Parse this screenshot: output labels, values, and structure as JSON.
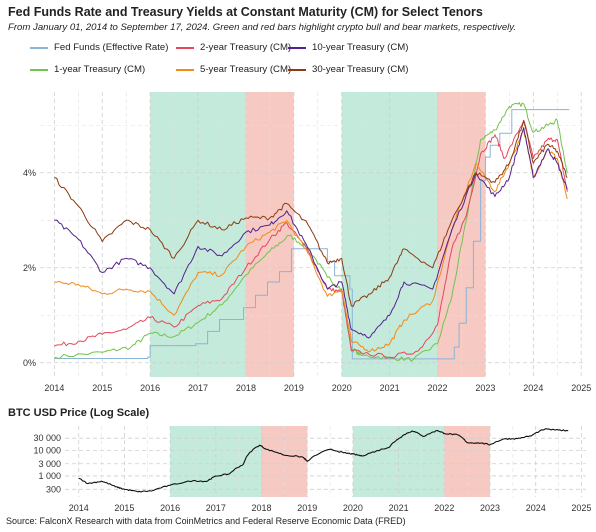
{
  "header": {
    "title": "Fed Funds Rate and Treasury Yields at Constant Maturity (CM) for Select Tenors",
    "subtitle": "From January 01, 2014 to September 17, 2024. Green and red bars highlight crypto bull and bear markets, respectively."
  },
  "legend": [
    {
      "label": "Fed Funds (Effective Rate)",
      "color": "#8ab4d8"
    },
    {
      "label": "2-year Treasury (CM)",
      "color": "#e3495a"
    },
    {
      "label": "10-year Treasury (CM)",
      "color": "#55228d"
    },
    {
      "label": "1-year Treasury (CM)",
      "color": "#74c34c"
    },
    {
      "label": "5-year Treasury (CM)",
      "color": "#f28a1c"
    },
    {
      "label": "30-year Treasury (CM)",
      "color": "#8c3b14"
    }
  ],
  "btc_title": "BTC USD Price (Log Scale)",
  "source": "Source: FalconX Research with data from CoinMetrics and Federal Reserve Economic Data (FRED)",
  "chart_data": [
    {
      "type": "line",
      "x_range": [
        2013.7,
        2025.1
      ],
      "ylim": [
        -0.3,
        5.7
      ],
      "y_ticks": [
        0,
        2,
        4
      ],
      "y_tick_labels": [
        "0%",
        "2%",
        "4%"
      ],
      "x_ticks": [
        2014,
        2015,
        2016,
        2017,
        2018,
        2019,
        2020,
        2021,
        2022,
        2023,
        2024,
        2025
      ],
      "x_tick_labels": [
        "2014",
        "2015",
        "2016",
        "2017",
        "2018",
        "2019",
        "2020",
        "2021",
        "2022",
        "2023",
        "2024",
        "2025"
      ],
      "bands": [
        {
          "type": "bull",
          "start": 2016.0,
          "end": 2018.0,
          "color": "#c3eadb"
        },
        {
          "type": "bear",
          "start": 2018.0,
          "end": 2019.0,
          "color": "#f6c9c3"
        },
        {
          "type": "bull",
          "start": 2020.0,
          "end": 2022.0,
          "color": "#c3eadb"
        },
        {
          "type": "bear",
          "start": 2022.0,
          "end": 2023.0,
          "color": "#f6c9c3"
        }
      ],
      "series": [
        {
          "name": "Fed Funds (Effective Rate)",
          "color": "#8ab4d8",
          "x": [
            2014.0,
            2015.95,
            2016.0,
            2016.95,
            2017.2,
            2017.45,
            2017.95,
            2018.2,
            2018.45,
            2018.7,
            2018.95,
            2019.55,
            2019.7,
            2019.85,
            2020.17,
            2020.22,
            2022.2,
            2022.35,
            2022.45,
            2022.6,
            2022.75,
            2022.9,
            2023.0,
            2023.1,
            2023.3,
            2023.55,
            2024.7,
            2024.75
          ],
          "y": [
            0.09,
            0.12,
            0.36,
            0.4,
            0.66,
            0.91,
            1.16,
            1.42,
            1.7,
            1.92,
            2.4,
            2.4,
            2.13,
            1.83,
            1.55,
            0.08,
            0.08,
            0.33,
            0.83,
            1.58,
            2.56,
            3.83,
            4.33,
            4.58,
            4.83,
            5.33,
            5.33,
            5.33
          ]
        },
        {
          "name": "1-year Treasury (CM)",
          "color": "#74c34c",
          "x": [
            2014.0,
            2015.0,
            2015.6,
            2016.0,
            2016.5,
            2017.0,
            2017.5,
            2018.0,
            2018.5,
            2018.9,
            2019.3,
            2019.7,
            2020.0,
            2020.2,
            2020.4,
            2021.0,
            2021.5,
            2022.0,
            2022.3,
            2022.6,
            2022.9,
            2023.2,
            2023.5,
            2023.8,
            2024.0,
            2024.3,
            2024.5,
            2024.71
          ],
          "y": [
            0.12,
            0.22,
            0.33,
            0.62,
            0.55,
            0.85,
            1.22,
            1.85,
            2.35,
            2.68,
            2.42,
            1.8,
            1.55,
            0.3,
            0.16,
            0.1,
            0.07,
            0.4,
            1.4,
            3.0,
            4.7,
            4.9,
            5.4,
            5.45,
            4.85,
            5.0,
            5.1,
            4.0
          ]
        },
        {
          "name": "2-year Treasury (CM)",
          "color": "#e3495a",
          "x": [
            2014.0,
            2014.5,
            2015.0,
            2015.5,
            2016.0,
            2016.5,
            2017.0,
            2017.5,
            2018.0,
            2018.5,
            2018.85,
            2019.3,
            2019.7,
            2020.0,
            2020.2,
            2021.0,
            2021.6,
            2022.0,
            2022.3,
            2022.6,
            2022.9,
            2023.2,
            2023.4,
            2023.8,
            2024.0,
            2024.3,
            2024.5,
            2024.71
          ],
          "y": [
            0.35,
            0.45,
            0.6,
            0.7,
            0.95,
            0.75,
            1.2,
            1.35,
            2.0,
            2.6,
            2.95,
            2.35,
            1.55,
            1.5,
            0.25,
            0.12,
            0.25,
            0.8,
            2.4,
            3.1,
            4.4,
            4.8,
            4.3,
            5.1,
            4.3,
            4.7,
            4.7,
            3.6
          ]
        },
        {
          "name": "5-year Treasury (CM)",
          "color": "#f28a1c",
          "x": [
            2014.0,
            2014.5,
            2015.0,
            2015.5,
            2016.0,
            2016.5,
            2017.0,
            2017.5,
            2018.0,
            2018.5,
            2018.85,
            2019.3,
            2019.7,
            2020.0,
            2020.2,
            2020.6,
            2021.0,
            2021.3,
            2021.9,
            2022.3,
            2022.8,
            2023.2,
            2023.5,
            2023.8,
            2024.0,
            2024.3,
            2024.5,
            2024.71
          ],
          "y": [
            1.7,
            1.65,
            1.45,
            1.55,
            1.5,
            1.0,
            1.9,
            1.85,
            2.45,
            2.75,
            3.0,
            2.3,
            1.4,
            1.55,
            0.45,
            0.25,
            0.4,
            0.9,
            1.3,
            2.8,
            4.2,
            3.6,
            4.2,
            4.9,
            3.9,
            4.5,
            4.3,
            3.45
          ]
        },
        {
          "name": "10-year Treasury (CM)",
          "color": "#55228d",
          "x": [
            2014.0,
            2014.5,
            2015.0,
            2015.5,
            2016.0,
            2016.5,
            2017.0,
            2017.5,
            2018.0,
            2018.5,
            2018.85,
            2019.3,
            2019.7,
            2020.0,
            2020.2,
            2020.6,
            2021.0,
            2021.3,
            2021.9,
            2022.3,
            2022.8,
            2023.2,
            2023.5,
            2023.8,
            2024.0,
            2024.3,
            2024.5,
            2024.71
          ],
          "y": [
            3.0,
            2.6,
            1.9,
            2.2,
            2.0,
            1.45,
            2.45,
            2.25,
            2.75,
            2.9,
            3.2,
            2.4,
            1.55,
            1.7,
            0.7,
            0.55,
            1.0,
            1.7,
            1.55,
            2.8,
            4.0,
            3.5,
            3.9,
            4.95,
            3.9,
            4.5,
            4.2,
            3.65
          ]
        },
        {
          "name": "30-year Treasury (CM)",
          "color": "#8c3b14",
          "x": [
            2014.0,
            2014.5,
            2015.0,
            2015.5,
            2016.0,
            2016.5,
            2017.0,
            2017.5,
            2018.0,
            2018.5,
            2018.85,
            2019.3,
            2019.7,
            2020.0,
            2020.2,
            2020.6,
            2021.0,
            2021.3,
            2021.9,
            2022.3,
            2022.8,
            2023.2,
            2023.5,
            2023.8,
            2024.0,
            2024.3,
            2024.5,
            2024.71
          ],
          "y": [
            3.9,
            3.3,
            2.55,
            3.0,
            2.8,
            2.2,
            3.0,
            2.8,
            3.05,
            3.05,
            3.35,
            2.9,
            2.1,
            2.2,
            1.2,
            1.45,
            1.8,
            2.4,
            2.0,
            3.0,
            4.0,
            3.8,
            4.2,
            5.1,
            4.2,
            4.6,
            4.45,
            3.9
          ]
        }
      ]
    },
    {
      "type": "line",
      "title": "BTC USD Price (Log Scale)",
      "x_range": [
        2013.7,
        2025.1
      ],
      "y_scale": "log",
      "ylim": [
        150,
        90000
      ],
      "y_ticks": [
        300,
        1000,
        3000,
        10000,
        30000
      ],
      "y_tick_labels": [
        "300",
        "1 000",
        "3 000",
        "10 000",
        "30 000"
      ],
      "x_ticks": [
        2014,
        2015,
        2016,
        2017,
        2018,
        2019,
        2020,
        2021,
        2022,
        2023,
        2024,
        2025
      ],
      "x_tick_labels": [
        "2014",
        "2015",
        "2016",
        "2017",
        "2018",
        "2019",
        "2020",
        "2021",
        "2022",
        "2023",
        "2024",
        "2025"
      ],
      "bands": [
        {
          "type": "bull",
          "start": 2016.0,
          "end": 2018.0,
          "color": "#c3eadb"
        },
        {
          "type": "bear",
          "start": 2018.0,
          "end": 2019.0,
          "color": "#f6c9c3"
        },
        {
          "type": "bull",
          "start": 2020.0,
          "end": 2022.0,
          "color": "#c3eadb"
        },
        {
          "type": "bear",
          "start": 2022.0,
          "end": 2023.0,
          "color": "#f6c9c3"
        }
      ],
      "series": [
        {
          "name": "BTC USD",
          "color": "#111111",
          "x": [
            2014.0,
            2014.2,
            2014.5,
            2014.8,
            2015.0,
            2015.3,
            2015.6,
            2016.0,
            2016.5,
            2016.8,
            2017.0,
            2017.3,
            2017.6,
            2017.96,
            2018.1,
            2018.5,
            2018.9,
            2019.0,
            2019.5,
            2019.8,
            2020.0,
            2020.2,
            2020.5,
            2020.8,
            2021.0,
            2021.3,
            2021.55,
            2021.85,
            2022.0,
            2022.3,
            2022.5,
            2022.8,
            2023.0,
            2023.3,
            2023.6,
            2023.9,
            2024.2,
            2024.5,
            2024.71
          ],
          "y": [
            800,
            500,
            620,
            380,
            300,
            240,
            260,
            430,
            650,
            610,
            980,
            1200,
            2800,
            16000,
            11000,
            6500,
            5500,
            3700,
            11000,
            8000,
            7200,
            6000,
            9200,
            13500,
            29000,
            58000,
            35000,
            60000,
            46000,
            40000,
            20000,
            19500,
            16600,
            28000,
            29000,
            37000,
            68000,
            62000,
            60000
          ]
        }
      ]
    }
  ]
}
